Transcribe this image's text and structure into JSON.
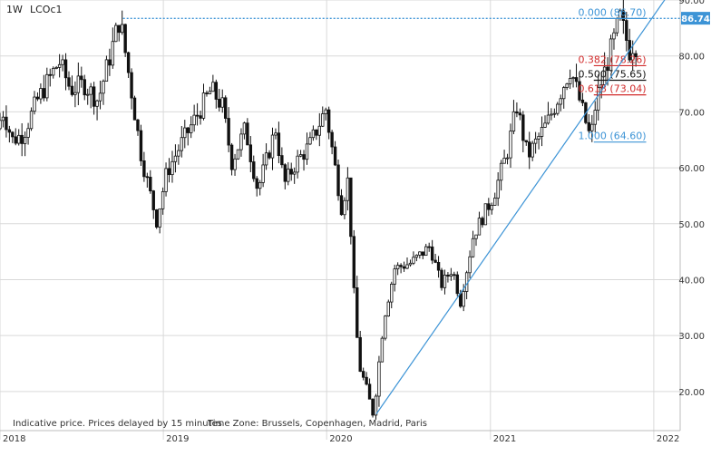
{
  "header": {
    "interval": "1W",
    "symbol": "LCOc1"
  },
  "footer": {
    "notice": "Indicative price. Prices delayed by 15 minutes",
    "timezone": "Time Zone: Brussels, Copenhagen, Madrid, Paris"
  },
  "colors": {
    "grid": "#d9d9d9",
    "candle": "#111111",
    "trend": "#3d94d6",
    "fib_blue": "#3d94d6",
    "fib_red": "#d12b2b",
    "fib_black": "#111111",
    "last_price_bg": "#3d94d6"
  },
  "chart_data": {
    "type": "candlestick",
    "title": "",
    "instrument": "LCOc1",
    "interval": "1W",
    "x_axis": {
      "type": "date",
      "range": [
        "2018-01-01",
        "2022-03-01"
      ],
      "ticks": [
        "2018",
        "2019",
        "2020",
        "2021",
        "2022"
      ]
    },
    "y_axis": {
      "range": [
        13,
        90
      ],
      "ticks": [
        20,
        30,
        40,
        50,
        60,
        70,
        80,
        90
      ],
      "tick_labels": [
        "20.00",
        "30.00",
        "40.00",
        "50.00",
        "60.00",
        "70.00",
        "80.00",
        "90.00"
      ],
      "position": "right"
    },
    "grid": true,
    "last_price": 86.74,
    "last_price_label": "86.74",
    "price_path": [
      [
        "2018-01-01",
        67
      ],
      [
        "2018-01-15",
        70
      ],
      [
        "2018-02-05",
        65
      ],
      [
        "2018-03-01",
        66
      ],
      [
        "2018-04-01",
        72
      ],
      [
        "2018-05-20",
        79
      ],
      [
        "2018-06-15",
        74
      ],
      [
        "2018-07-15",
        75
      ],
      [
        "2018-08-15",
        72
      ],
      [
        "2018-10-03",
        86.7
      ],
      [
        "2018-11-01",
        72
      ],
      [
        "2018-11-20",
        62
      ],
      [
        "2018-12-24",
        50.5
      ],
      [
        "2019-01-15",
        59
      ],
      [
        "2019-02-15",
        64
      ],
      [
        "2019-04-25",
        74
      ],
      [
        "2019-05-20",
        71
      ],
      [
        "2019-06-10",
        61
      ],
      [
        "2019-07-10",
        67
      ],
      [
        "2019-08-07",
        56
      ],
      [
        "2019-09-16",
        67
      ],
      [
        "2019-10-05",
        57
      ],
      [
        "2019-11-01",
        61
      ],
      [
        "2019-12-01",
        64
      ],
      [
        "2020-01-06",
        70.5
      ],
      [
        "2020-02-10",
        53
      ],
      [
        "2020-02-25",
        58
      ],
      [
        "2020-03-10",
        36
      ],
      [
        "2020-03-20",
        25
      ],
      [
        "2020-04-21",
        15.98
      ],
      [
        "2020-05-15",
        33
      ],
      [
        "2020-06-08",
        42
      ],
      [
        "2020-07-15",
        43
      ],
      [
        "2020-08-26",
        46
      ],
      [
        "2020-09-20",
        39
      ],
      [
        "2020-10-15",
        42
      ],
      [
        "2020-11-02",
        36
      ],
      [
        "2020-12-01",
        48
      ],
      [
        "2021-01-15",
        55
      ],
      [
        "2021-02-15",
        63
      ],
      [
        "2021-03-08",
        71
      ],
      [
        "2021-04-01",
        62
      ],
      [
        "2021-05-15",
        68
      ],
      [
        "2021-07-06",
        77.8
      ],
      [
        "2021-08-20",
        65
      ],
      [
        "2021-09-01",
        72
      ],
      [
        "2021-10-25",
        86.7
      ],
      [
        "2021-11-15",
        81
      ],
      [
        "2021-11-22",
        82
      ]
    ],
    "trendline": {
      "from": [
        "2020-04-21",
        15.98
      ],
      "to": [
        "2022-03-01",
        94
      ]
    },
    "fibonacci": {
      "high": {
        "x": "2018-10-03",
        "value": 86.7
      },
      "levels": [
        {
          "ratio": "0.000",
          "value": 86.7,
          "label": "0.000 (86.70)",
          "color": "blue"
        },
        {
          "ratio": "0.382",
          "value": 78.26,
          "label": "0.382 (78.26)",
          "color": "red"
        },
        {
          "ratio": "0.500",
          "value": 75.65,
          "label": "0.500 (75.65)",
          "color": "black"
        },
        {
          "ratio": "0.618",
          "value": 73.04,
          "label": "0.618 (73.04)",
          "color": "red"
        },
        {
          "ratio": "1.000",
          "value": 64.6,
          "label": "1.000 (64.60)",
          "color": "blue"
        }
      ],
      "level_range": [
        "2021-08-20",
        "2021-12-15"
      ]
    }
  }
}
